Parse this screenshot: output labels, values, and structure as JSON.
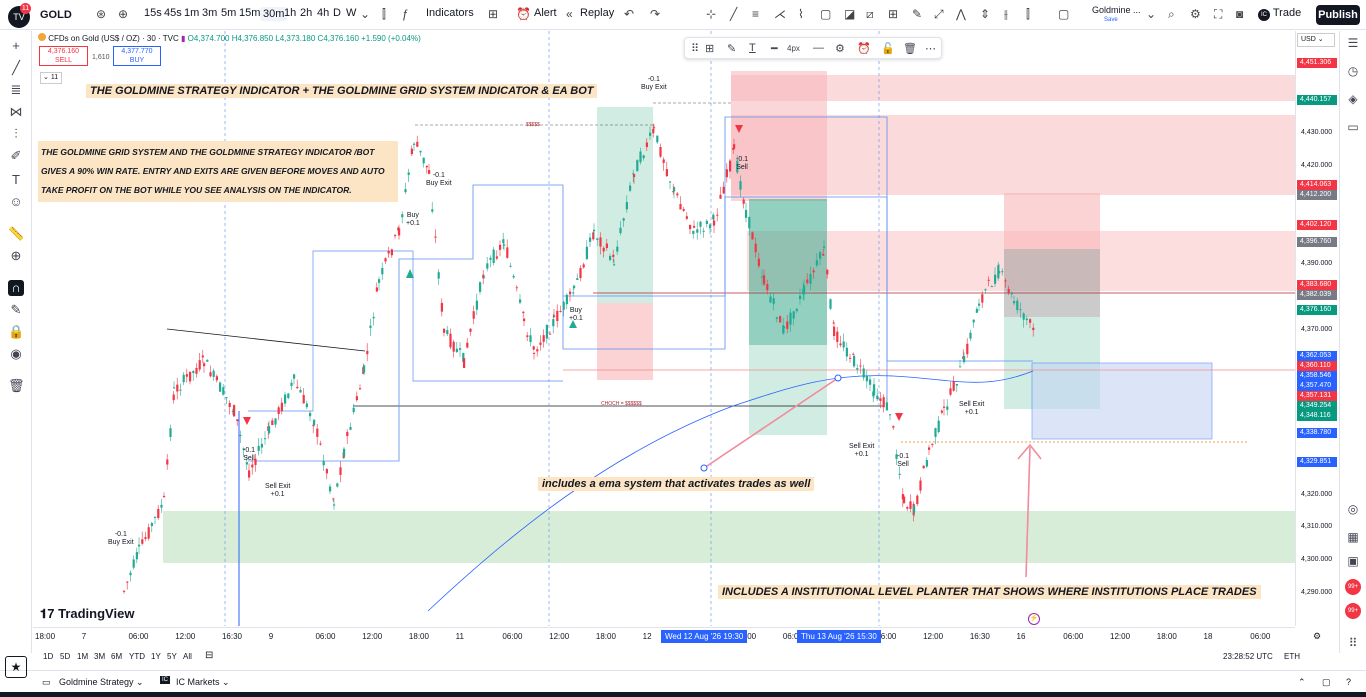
{
  "topbar": {
    "notifications": "11",
    "symbol": "GOLD",
    "intervals": [
      "15s",
      "45s",
      "1m",
      "3m",
      "5m",
      "15m",
      "30m",
      "1h",
      "2h",
      "4h",
      "D",
      "W"
    ],
    "active_interval": "30m",
    "indicators_label": "Indicators",
    "alert_label": "Alert",
    "replay_label": "Replay",
    "layout_name": "Goldmine ...",
    "layout_status": "Save",
    "trade_label": "Trade",
    "publish_label": "Publish"
  },
  "legend": {
    "title": "CFDs on Gold (US$ / OZ) · 30 · TVC",
    "ohlc": "O4,374.700 H4,376.850 L4,373.180 C4,376.160 +1.590 (+0.04%)",
    "sell_price": "4,376.160",
    "sell_label": "SELL",
    "spread": "1,610",
    "buy_price": "4,377.770",
    "buy_label": "BUY",
    "collapsed_count": "11"
  },
  "drawing_toolbar": {
    "width_label": "4px"
  },
  "annotations": {
    "headline": "THE GOLDMINE STRATEGY INDICATOR + THE GOLDMINE GRID SYSTEM INDICATOR & EA BOT",
    "paragraph": "THE GOLDMINE GRID SYSTEM AND THE GOLDMINE STRATEGY INDICATOR /BOT GIVES A 90% WIN RATE. ENTRY AND EXITS ARE GIVEN BEFORE MOVES AND AUTO TAKE PROFIT ON THE BOT WHILE YOU SEE ANALYSIS ON THE INDICATOR.",
    "ema_note": "includes a ema system that activates trades as well",
    "institution_note": "INCLUDES A INSTITUTIONAL LEVEL PLANTER THAT SHOWS WHERE INSTITUTIONS PLACE TRADES",
    "brand": "TradingView",
    "choch": "CHOCH = $$$$$$",
    "dollars": "$$$$$"
  },
  "signals": [
    {
      "text": "-0.1\nBuy Exit"
    },
    {
      "text": "-0.1\nSell"
    },
    {
      "text": "Sell Exit\n+0.1"
    },
    {
      "text": "-0.1\nBuy Exit"
    },
    {
      "text": "Buy\n+0.1"
    },
    {
      "text": "Buy\n+0.1"
    },
    {
      "text": "-0.1\nBuy Exit"
    },
    {
      "text": "-0.1\nSell"
    },
    {
      "text": "Sell Exit\n+0.1"
    },
    {
      "text": "-0.1\nSell"
    },
    {
      "text": "Sell Exit\n+0.1"
    }
  ],
  "price_axis": {
    "currency": "USD",
    "ticks": [
      "4,430.000",
      "4,420.000",
      "4,390.000",
      "4,370.000",
      "4,320.000",
      "4,310.000",
      "4,300.000",
      "4,290.000"
    ],
    "tags": [
      {
        "value": "4,451.306",
        "color": "#f23645"
      },
      {
        "value": "4,440.157",
        "color": "#089981"
      },
      {
        "value": "4,414.063",
        "color": "#f23645"
      },
      {
        "value": "4,412.200",
        "color": "#787b86"
      },
      {
        "value": "4,402.120",
        "color": "#f23645"
      },
      {
        "value": "4,396.760",
        "color": "#787b86"
      },
      {
        "value": "4,383.680",
        "color": "#f23645"
      },
      {
        "value": "4,382.039",
        "color": "#787b86"
      },
      {
        "value": "4,376.160",
        "color": "#089981"
      },
      {
        "value": "4,362.053",
        "color": "#2962ff"
      },
      {
        "value": "4,360.110",
        "color": "#f23645"
      },
      {
        "value": "4,358.546",
        "color": "#2962ff"
      },
      {
        "value": "4,357.470",
        "color": "#2962ff"
      },
      {
        "value": "4,357.131",
        "color": "#f23645"
      },
      {
        "value": "4,349.254",
        "color": "#089981"
      },
      {
        "value": "4,348.116",
        "color": "#089981"
      },
      {
        "value": "4,338.780",
        "color": "#2962ff"
      },
      {
        "value": "4,329.851",
        "color": "#2962ff"
      }
    ]
  },
  "time_axis": {
    "labels": [
      "18:00",
      "7",
      "06:00",
      "12:00",
      "16:30",
      "9",
      "06:00",
      "12:00",
      "18:00",
      "11",
      "06:00",
      "12:00",
      "18:00",
      "12",
      "06:00",
      "12:00",
      "06:00",
      "14",
      "06:00",
      "12:00",
      "16:30",
      "16",
      "06:00",
      "12:00",
      "18:00",
      "18",
      "06:00"
    ],
    "tag1": "Wed 12 Aug '26   19:30",
    "tag2": "Thu 13 Aug '26   15:30"
  },
  "bottom": {
    "ranges": [
      "1D",
      "5D",
      "1M",
      "3M",
      "6M",
      "YTD",
      "1Y",
      "5Y",
      "All"
    ],
    "clock": "23:28:52 UTC",
    "session": "ETH"
  },
  "panels": {
    "strategy": "Goldmine Strategy",
    "broker": "IC Markets"
  }
}
